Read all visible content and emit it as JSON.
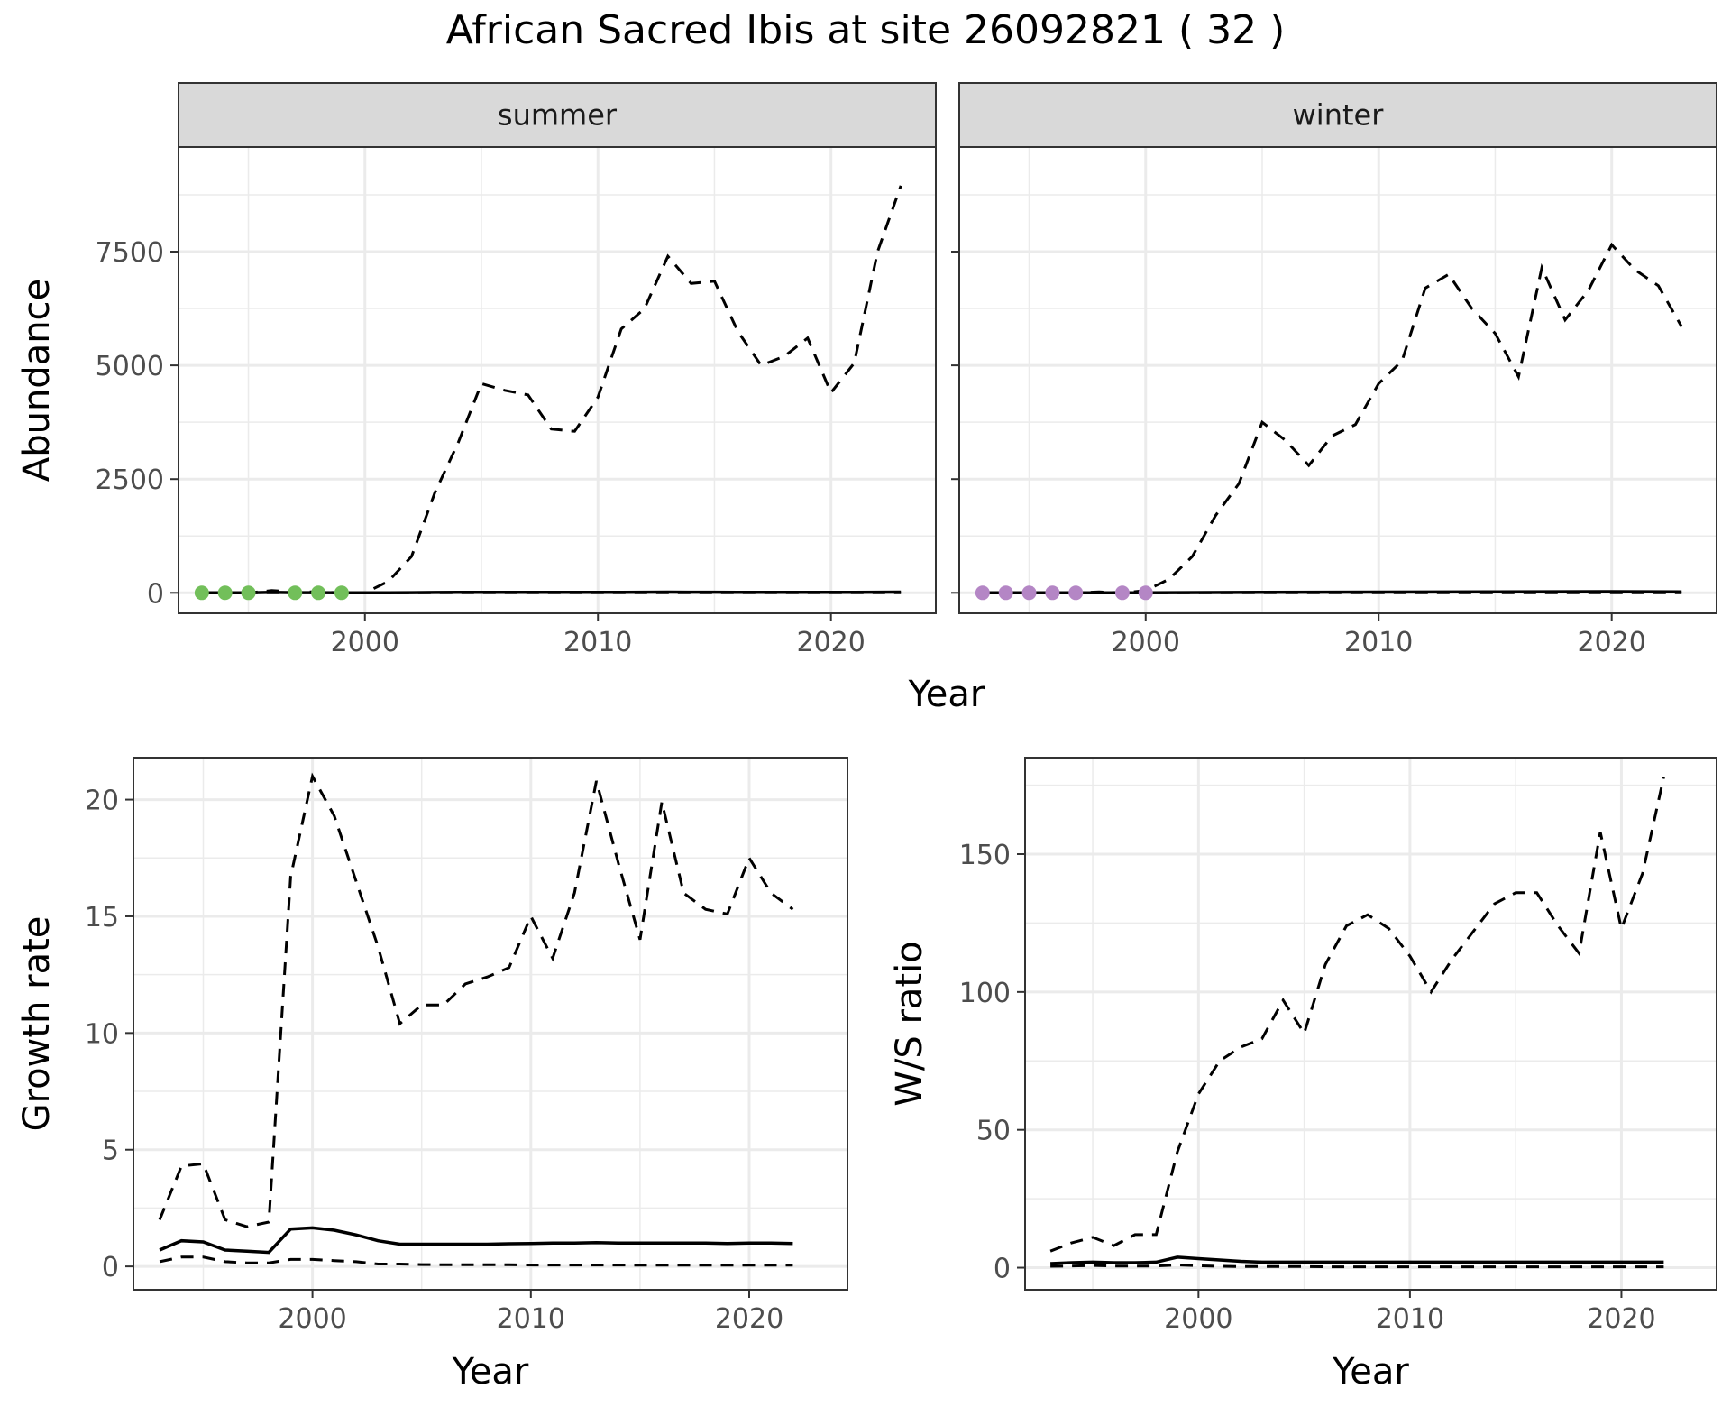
{
  "title": "African Sacred Ibis at site 26092821 ( 32 )",
  "chart_data": [
    {
      "type": "line",
      "panel": "Abundance",
      "facet": "summer",
      "xlabel": "Year",
      "ylabel": "Abundance",
      "xlim": [
        1992,
        2024.5
      ],
      "ylim": [
        -450,
        9800
      ],
      "xticks": [
        2000,
        2010,
        2020
      ],
      "yticks": [
        0,
        2500,
        5000,
        7500
      ],
      "points_color": "#72bf5a",
      "points": [
        {
          "x": 1993,
          "y": 0
        },
        {
          "x": 1994,
          "y": 0
        },
        {
          "x": 1995,
          "y": 0
        },
        {
          "x": 1997,
          "y": 0
        },
        {
          "x": 1998,
          "y": 0
        },
        {
          "x": 1999,
          "y": 0
        }
      ],
      "series": [
        {
          "style": "dashed",
          "x": [
            1993,
            1994,
            1995,
            1996,
            1997,
            1998,
            1999,
            2000,
            2001,
            2002,
            2003,
            2004,
            2005,
            2006,
            2007,
            2008,
            2009,
            2010,
            2011,
            2012,
            2013,
            2014,
            2015,
            2016,
            2017,
            2018,
            2019,
            2020,
            2021,
            2022,
            2023
          ],
          "values": [
            0,
            0,
            0,
            50,
            20,
            20,
            0,
            0,
            250,
            800,
            2200,
            3300,
            4600,
            4450,
            4350,
            3600,
            3550,
            4300,
            5800,
            6250,
            7400,
            6800,
            6850,
            5750,
            5000,
            5200,
            5600,
            4400,
            5050,
            7500,
            8950
          ]
        },
        {
          "style": "solid",
          "x": [
            1993,
            1994,
            1995,
            1996,
            1997,
            1998,
            1999,
            2000,
            2001,
            2002,
            2003,
            2004,
            2005,
            2006,
            2007,
            2008,
            2009,
            2010,
            2011,
            2012,
            2013,
            2014,
            2015,
            2016,
            2017,
            2018,
            2019,
            2020,
            2021,
            2022,
            2023
          ],
          "values": [
            0,
            0,
            0,
            10,
            5,
            5,
            0,
            0,
            2,
            5,
            8,
            10,
            12,
            11,
            10,
            9,
            9,
            10,
            12,
            13,
            15,
            14,
            14,
            12,
            11,
            11,
            12,
            10,
            11,
            13,
            15
          ]
        },
        {
          "style": "dashed",
          "x": [
            1993,
            2023
          ],
          "values": [
            0,
            0
          ]
        }
      ]
    },
    {
      "type": "line",
      "panel": "Abundance",
      "facet": "winter",
      "xlabel": "Year",
      "ylabel": "Abundance",
      "xlim": [
        1992,
        2024.5
      ],
      "ylim": [
        -450,
        9800
      ],
      "xticks": [
        2000,
        2010,
        2020
      ],
      "yticks": [
        0,
        2500,
        5000,
        7500
      ],
      "points_color": "#b486c5",
      "points": [
        {
          "x": 1993,
          "y": 0
        },
        {
          "x": 1994,
          "y": 0
        },
        {
          "x": 1995,
          "y": 0
        },
        {
          "x": 1996,
          "y": 0
        },
        {
          "x": 1997,
          "y": 0
        },
        {
          "x": 1999,
          "y": 0
        },
        {
          "x": 2000,
          "y": 0
        }
      ],
      "series": [
        {
          "style": "dashed",
          "x": [
            1993,
            1994,
            1995,
            1996,
            1997,
            1998,
            1999,
            2000,
            2001,
            2002,
            2003,
            2004,
            2005,
            2006,
            2007,
            2008,
            2009,
            2010,
            2011,
            2012,
            2013,
            2014,
            2015,
            2016,
            2017,
            2018,
            2019,
            2020,
            2021,
            2022,
            2023
          ],
          "values": [
            0,
            0,
            0,
            0,
            0,
            20,
            0,
            50,
            300,
            800,
            1700,
            2400,
            3750,
            3350,
            2800,
            3450,
            3700,
            4600,
            5100,
            6700,
            7000,
            6250,
            5700,
            4750,
            7150,
            6000,
            6650,
            7650,
            7100,
            6750,
            5850
          ]
        },
        {
          "style": "solid",
          "x": [
            1993,
            2000,
            2005,
            2010,
            2015,
            2020,
            2023
          ],
          "values": [
            0,
            0,
            10,
            15,
            20,
            25,
            20
          ]
        },
        {
          "style": "dashed",
          "x": [
            1993,
            2023
          ],
          "values": [
            0,
            0
          ]
        }
      ]
    },
    {
      "type": "line",
      "panel": "Growth rate",
      "xlabel": "Year",
      "ylabel": "Growth rate",
      "xlim": [
        1991.8,
        2024.5
      ],
      "ylim": [
        -1,
        21.8
      ],
      "xticks": [
        2000,
        2010,
        2020
      ],
      "yticks": [
        0,
        5,
        10,
        15,
        20
      ],
      "series": [
        {
          "style": "dashed",
          "x": [
            1993,
            1994,
            1995,
            1996,
            1997,
            1998,
            1999,
            2000,
            2001,
            2002,
            2003,
            2004,
            2005,
            2006,
            2007,
            2008,
            2009,
            2010,
            2011,
            2012,
            2013,
            2014,
            2015,
            2016,
            2017,
            2018,
            2019,
            2020,
            2021,
            2022
          ],
          "values": [
            2,
            4.3,
            4.4,
            2,
            1.7,
            1.9,
            16.7,
            21,
            19.3,
            16.5,
            13.7,
            10.4,
            11.2,
            11.2,
            12.1,
            12.4,
            12.8,
            15,
            13.2,
            16,
            20.8,
            17.3,
            14,
            19.9,
            16,
            15.3,
            15.1,
            17.5,
            16,
            15.3
          ]
        },
        {
          "style": "solid",
          "x": [
            1993,
            1994,
            1995,
            1996,
            1997,
            1998,
            1999,
            2000,
            2001,
            2002,
            2003,
            2004,
            2005,
            2006,
            2007,
            2008,
            2009,
            2010,
            2011,
            2012,
            2013,
            2014,
            2015,
            2016,
            2017,
            2018,
            2019,
            2020,
            2021,
            2022
          ],
          "values": [
            0.7,
            1.1,
            1.05,
            0.7,
            0.65,
            0.6,
            1.6,
            1.65,
            1.55,
            1.35,
            1.1,
            0.95,
            0.95,
            0.95,
            0.95,
            0.95,
            0.97,
            0.98,
            1.0,
            1.0,
            1.02,
            1.0,
            1.0,
            1.0,
            1.0,
            1.0,
            0.98,
            1.0,
            1.0,
            0.98
          ]
        },
        {
          "style": "dashed",
          "x": [
            1993,
            1994,
            1995,
            1996,
            1997,
            1998,
            1999,
            2000,
            2001,
            2002,
            2003,
            2004,
            2005,
            2006,
            2007,
            2008,
            2009,
            2010,
            2011,
            2012,
            2013,
            2014,
            2015,
            2016,
            2017,
            2018,
            2019,
            2020,
            2021,
            2022
          ],
          "values": [
            0.2,
            0.4,
            0.4,
            0.2,
            0.15,
            0.15,
            0.3,
            0.3,
            0.25,
            0.2,
            0.1,
            0.1,
            0.08,
            0.07,
            0.07,
            0.07,
            0.07,
            0.06,
            0.06,
            0.06,
            0.06,
            0.06,
            0.05,
            0.05,
            0.05,
            0.05,
            0.05,
            0.05,
            0.05,
            0.05
          ]
        }
      ]
    },
    {
      "type": "line",
      "panel": "W/S ratio",
      "xlabel": "Year",
      "ylabel": "W/S ratio",
      "xlim": [
        1991.8,
        2024.5
      ],
      "ylim": [
        -8,
        185
      ],
      "xticks": [
        2000,
        2010,
        2020
      ],
      "yticks": [
        0,
        50,
        100,
        150
      ],
      "series": [
        {
          "style": "dashed",
          "x": [
            1993,
            1994,
            1995,
            1996,
            1997,
            1998,
            1999,
            2000,
            2001,
            2002,
            2003,
            2004,
            2005,
            2006,
            2007,
            2008,
            2009,
            2010,
            2011,
            2012,
            2013,
            2014,
            2015,
            2016,
            2017,
            2018,
            2019,
            2020,
            2021,
            2022
          ],
          "values": [
            6,
            9,
            11,
            8,
            12,
            12,
            42,
            63,
            75,
            80,
            83,
            97,
            85,
            110,
            124,
            128,
            123,
            113,
            100,
            112,
            122,
            132,
            136,
            136,
            124,
            114,
            158,
            123,
            143,
            178
          ]
        },
        {
          "style": "solid",
          "x": [
            1993,
            1994,
            1995,
            1996,
            1997,
            1998,
            1999,
            2000,
            2001,
            2002,
            2003,
            2004,
            2005,
            2006,
            2007,
            2008,
            2009,
            2010,
            2011,
            2012,
            2013,
            2014,
            2015,
            2016,
            2017,
            2018,
            2019,
            2020,
            2021,
            2022
          ],
          "values": [
            1.5,
            1.8,
            2,
            1.8,
            1.8,
            2,
            3.8,
            3.3,
            2.8,
            2.3,
            2,
            2,
            2,
            2,
            2,
            2,
            2,
            2,
            2,
            2,
            2,
            2,
            2,
            2,
            2,
            2,
            2,
            2,
            2,
            2
          ]
        },
        {
          "style": "dashed",
          "x": [
            1993,
            1994,
            1995,
            1996,
            1997,
            1998,
            1999,
            2000,
            2001,
            2002,
            2003,
            2004,
            2005,
            2006,
            2007,
            2008,
            2009,
            2010,
            2011,
            2012,
            2013,
            2014,
            2015,
            2016,
            2017,
            2018,
            2019,
            2020,
            2021,
            2022
          ],
          "values": [
            0.5,
            0.6,
            0.8,
            0.6,
            0.6,
            0.6,
            1,
            0.7,
            0.5,
            0.4,
            0.4,
            0.4,
            0.4,
            0.3,
            0.3,
            0.3,
            0.3,
            0.3,
            0.3,
            0.3,
            0.3,
            0.3,
            0.3,
            0.3,
            0.3,
            0.3,
            0.3,
            0.3,
            0.3,
            0.3
          ]
        }
      ]
    }
  ]
}
